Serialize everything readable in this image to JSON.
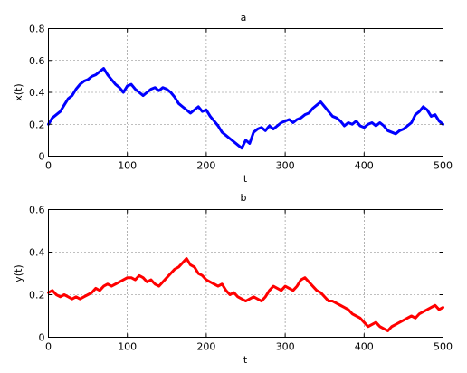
{
  "chart_data": [
    {
      "type": "line",
      "title": "a",
      "xlabel": "t",
      "ylabel": "x(t)",
      "xlim": [
        0,
        500
      ],
      "ylim": [
        0,
        0.8
      ],
      "xticks": [
        "0",
        "100",
        "200",
        "300",
        "400",
        "500"
      ],
      "yticks": [
        "0",
        "0.2",
        "0.4",
        "0.6",
        "0.8"
      ],
      "grid": true,
      "series": [
        {
          "color": "#0000ff",
          "x": [
            0,
            5,
            10,
            15,
            20,
            25,
            30,
            35,
            40,
            45,
            50,
            55,
            60,
            65,
            70,
            75,
            80,
            85,
            90,
            95,
            100,
            105,
            110,
            115,
            120,
            125,
            130,
            135,
            140,
            145,
            150,
            155,
            160,
            165,
            170,
            175,
            180,
            185,
            190,
            195,
            200,
            205,
            210,
            215,
            220,
            225,
            230,
            235,
            240,
            245,
            250,
            255,
            260,
            265,
            270,
            275,
            280,
            285,
            290,
            295,
            300,
            305,
            310,
            315,
            320,
            325,
            330,
            335,
            340,
            345,
            350,
            355,
            360,
            365,
            370,
            375,
            380,
            385,
            390,
            395,
            400,
            405,
            410,
            415,
            420,
            425,
            430,
            435,
            440,
            445,
            450,
            455,
            460,
            465,
            470,
            475,
            480,
            485,
            490,
            495,
            500
          ],
          "values": [
            0.2,
            0.24,
            0.26,
            0.28,
            0.32,
            0.36,
            0.38,
            0.42,
            0.45,
            0.47,
            0.48,
            0.5,
            0.51,
            0.53,
            0.55,
            0.51,
            0.48,
            0.45,
            0.43,
            0.4,
            0.44,
            0.45,
            0.42,
            0.4,
            0.38,
            0.4,
            0.42,
            0.43,
            0.41,
            0.43,
            0.42,
            0.4,
            0.37,
            0.33,
            0.31,
            0.29,
            0.27,
            0.29,
            0.31,
            0.28,
            0.29,
            0.25,
            0.22,
            0.19,
            0.15,
            0.13,
            0.11,
            0.09,
            0.07,
            0.05,
            0.1,
            0.08,
            0.15,
            0.17,
            0.18,
            0.16,
            0.19,
            0.17,
            0.19,
            0.21,
            0.22,
            0.23,
            0.21,
            0.23,
            0.24,
            0.26,
            0.27,
            0.3,
            0.32,
            0.34,
            0.31,
            0.28,
            0.25,
            0.24,
            0.22,
            0.19,
            0.21,
            0.2,
            0.22,
            0.19,
            0.18,
            0.2,
            0.21,
            0.19,
            0.21,
            0.19,
            0.16,
            0.15,
            0.14,
            0.16,
            0.17,
            0.19,
            0.21,
            0.26,
            0.28,
            0.31,
            0.29,
            0.25,
            0.26,
            0.22,
            0.2
          ]
        }
      ]
    },
    {
      "type": "line",
      "title": "b",
      "xlabel": "t",
      "ylabel": "y(t)",
      "xlim": [
        0,
        500
      ],
      "ylim": [
        0,
        0.6
      ],
      "xticks": [
        "0",
        "100",
        "200",
        "300",
        "400",
        "500"
      ],
      "yticks": [
        "0",
        "0.2",
        "0.4",
        "0.6"
      ],
      "grid": true,
      "series": [
        {
          "color": "#ff0000",
          "x": [
            0,
            5,
            10,
            15,
            20,
            25,
            30,
            35,
            40,
            45,
            50,
            55,
            60,
            65,
            70,
            75,
            80,
            85,
            90,
            95,
            100,
            105,
            110,
            115,
            120,
            125,
            130,
            135,
            140,
            145,
            150,
            155,
            160,
            165,
            170,
            175,
            180,
            185,
            190,
            195,
            200,
            205,
            210,
            215,
            220,
            225,
            230,
            235,
            240,
            245,
            250,
            255,
            260,
            265,
            270,
            275,
            280,
            285,
            290,
            295,
            300,
            305,
            310,
            315,
            320,
            325,
            330,
            335,
            340,
            345,
            350,
            355,
            360,
            365,
            370,
            375,
            380,
            385,
            390,
            395,
            400,
            405,
            410,
            415,
            420,
            425,
            430,
            435,
            440,
            445,
            450,
            455,
            460,
            465,
            470,
            475,
            480,
            485,
            490,
            495,
            500
          ],
          "values": [
            0.21,
            0.22,
            0.2,
            0.19,
            0.2,
            0.19,
            0.18,
            0.19,
            0.18,
            0.19,
            0.2,
            0.21,
            0.23,
            0.22,
            0.24,
            0.25,
            0.24,
            0.25,
            0.26,
            0.27,
            0.28,
            0.28,
            0.27,
            0.29,
            0.28,
            0.26,
            0.27,
            0.25,
            0.24,
            0.26,
            0.28,
            0.3,
            0.32,
            0.33,
            0.35,
            0.37,
            0.34,
            0.33,
            0.3,
            0.29,
            0.27,
            0.26,
            0.25,
            0.24,
            0.25,
            0.22,
            0.2,
            0.21,
            0.19,
            0.18,
            0.17,
            0.18,
            0.19,
            0.18,
            0.17,
            0.19,
            0.22,
            0.24,
            0.23,
            0.22,
            0.24,
            0.23,
            0.22,
            0.24,
            0.27,
            0.28,
            0.26,
            0.24,
            0.22,
            0.21,
            0.19,
            0.17,
            0.17,
            0.16,
            0.15,
            0.14,
            0.13,
            0.11,
            0.1,
            0.09,
            0.07,
            0.05,
            0.06,
            0.07,
            0.05,
            0.04,
            0.03,
            0.05,
            0.06,
            0.07,
            0.08,
            0.09,
            0.1,
            0.09,
            0.11,
            0.12,
            0.13,
            0.14,
            0.15,
            0.13,
            0.14
          ]
        }
      ]
    }
  ]
}
